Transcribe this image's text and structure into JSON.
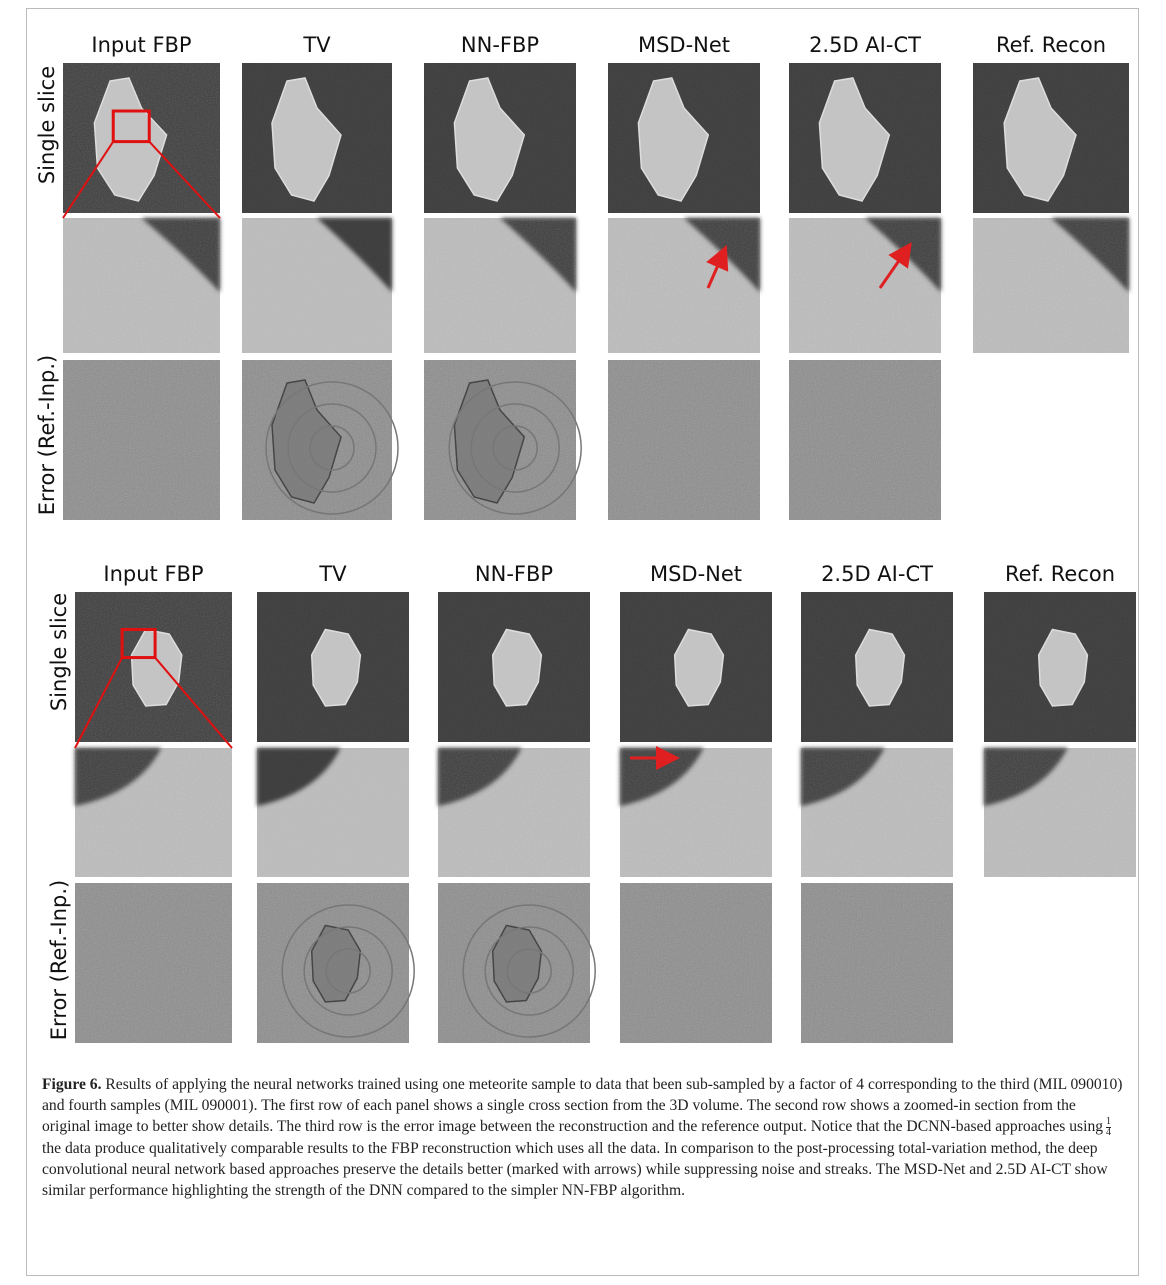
{
  "figure": {
    "panels": [
      {
        "column_titles": [
          "Input FBP",
          "TV",
          "NN-FBP",
          "MSD-Net",
          "2.5D AI-CT",
          "Ref. Recon"
        ],
        "row_labels": [
          "Single slice",
          "Error (Ref.-Inp.)"
        ]
      },
      {
        "column_titles": [
          "Input FBP",
          "TV",
          "NN-FBP",
          "MSD-Net",
          "2.5D AI-CT",
          "Ref. Recon"
        ],
        "row_labels": [
          "Single slice",
          "Error (Ref.-Inp.)"
        ]
      }
    ],
    "caption": {
      "label": "Figure 6.",
      "text_before_fraction": "Results of applying the neural networks trained using one meteorite sample to data that been sub-sampled by a factor of 4 corresponding to the third (MIL 090010) and fourth samples (MIL 090001). The first row of each panel shows a single cross section from the 3D volume. The second row shows a zoomed-in section from the original image to better show details. The third row is the error image between the reconstruction and the reference output. Notice that the DCNN-based approaches using",
      "fraction_numerator": "1",
      "fraction_denominator": "4",
      "text_after_fraction": "the data produce qualitatively comparable results to the FBP reconstruction which uses all the data. In comparison to the post-processing total-variation method, the deep convolutional neural network based approaches preserve the details better (marked with arrows) while suppressing noise and streaks. The MSD-Net and 2.5D AI-CT show similar performance highlighting the strength of the DNN compared to the simpler NN-FBP algorithm."
    }
  }
}
